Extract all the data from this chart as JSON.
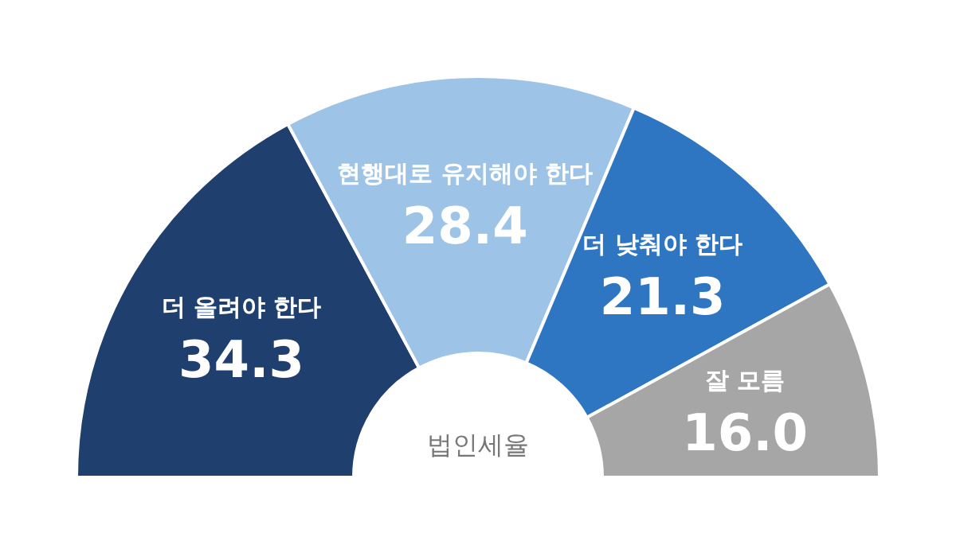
{
  "chart_data": {
    "type": "donut",
    "categories": [
      "더 올려야 한다",
      "현행대로 유지해야 한다",
      "더 낮춰야 한다",
      "잘 모름"
    ],
    "values": [
      34.3,
      28.4,
      21.3,
      16.0
    ],
    "value_labels": [
      "34.3",
      "28.4",
      "21.3",
      "16.0"
    ],
    "colors": [
      "#1f3f6e",
      "#9dc3e6",
      "#2e75c2",
      "#a6a6a6"
    ],
    "annotations": [
      "법인세율"
    ]
  }
}
